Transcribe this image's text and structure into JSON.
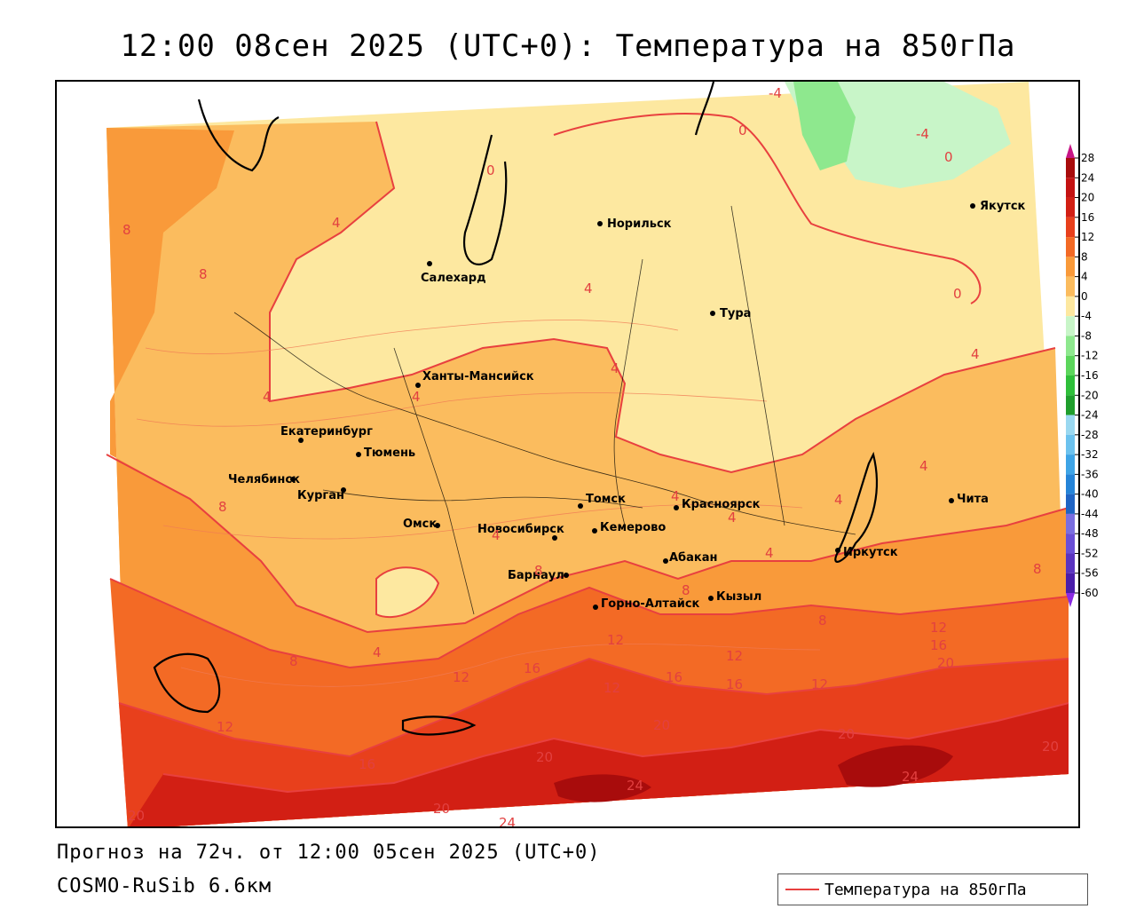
{
  "header": {
    "title": "12:00 08сен 2025 (UTC+0): Температура на 850гПа"
  },
  "footer": {
    "forecast": "Прогноз на 72ч. от 12:00 05сен 2025 (UTC+0)",
    "model": "COSMO-RuSib 6.6км",
    "legend_label": "Температура на 850гПа"
  },
  "colors": {
    "isoline": "#e8403f",
    "t_neg4_0": "#fff7b3",
    "t_0_4": "#fde8a0",
    "t_4_8": "#fbbc5e",
    "t_8_12": "#f99a3a",
    "t_12_16": "#f36a25",
    "t_16_20": "#e8401c",
    "t_20_24": "#d21f14",
    "t_24_28": "#a80c0c"
  },
  "cities": [
    {
      "name": "Норильск"
    },
    {
      "name": "Якутск"
    },
    {
      "name": "Салехард"
    },
    {
      "name": "Тура"
    },
    {
      "name": "Ханты-Мансийск"
    },
    {
      "name": "Екатеринбург"
    },
    {
      "name": "Тюмень"
    },
    {
      "name": "Челябинск"
    },
    {
      "name": "Курган"
    },
    {
      "name": "Омск"
    },
    {
      "name": "Томск"
    },
    {
      "name": "Красноярск"
    },
    {
      "name": "Новосибирск"
    },
    {
      "name": "Кемерово"
    },
    {
      "name": "Абакан"
    },
    {
      "name": "Иркутск"
    },
    {
      "name": "Чита"
    },
    {
      "name": "Барнаул"
    },
    {
      "name": "Кызыл"
    },
    {
      "name": "Горно-Алтайск"
    }
  ],
  "isoline_labels": [
    "-4",
    "-4",
    "0",
    "0",
    "0",
    "0",
    "8",
    "8",
    "4",
    "4",
    "4",
    "4",
    "4",
    "4",
    "4",
    "4",
    "4",
    "4",
    "4",
    "4",
    "4",
    "8",
    "8",
    "8",
    "8",
    "8",
    "8",
    "12",
    "12",
    "12",
    "12",
    "12",
    "12",
    "12",
    "16",
    "16",
    "16",
    "16",
    "16",
    "20",
    "20",
    "20",
    "20",
    "20",
    "20",
    "24",
    "24",
    "24",
    "20"
  ],
  "colorbar": {
    "ticks": [
      "28",
      "24",
      "20",
      "16",
      "12",
      "8",
      "4",
      "0",
      "-4",
      "-8",
      "-12",
      "-16",
      "-20",
      "-24",
      "-28",
      "-32",
      "-36",
      "-40",
      "-44",
      "-48",
      "-52",
      "-56",
      "-60"
    ],
    "colors": [
      "#a80c0c",
      "#c41212",
      "#d21f14",
      "#e8401c",
      "#f36a25",
      "#f99a3a",
      "#fbbc5e",
      "#fde8a0",
      "#c8f5c8",
      "#8ee88e",
      "#5cd65c",
      "#2fbf3a",
      "#1f9e2c",
      "#9ad8f0",
      "#6cc2ee",
      "#3ea4e6",
      "#2584d8",
      "#1f64c4",
      "#7a6ee0",
      "#6a4fd6",
      "#5a34c0",
      "#4a1eaa",
      "#2a0a8a"
    ]
  }
}
